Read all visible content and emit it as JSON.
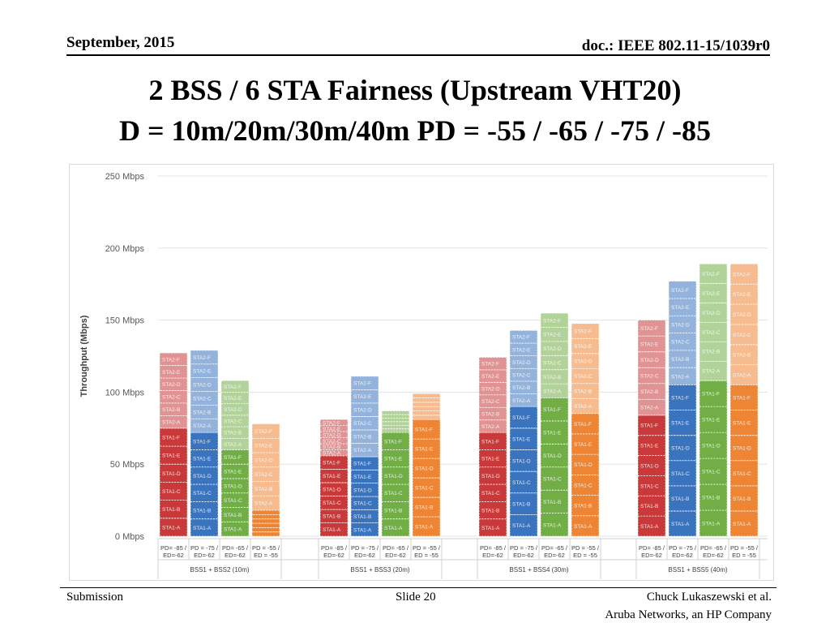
{
  "header": {
    "date": "September, 2015",
    "doc": "doc.: IEEE 802.11-15/1039r0"
  },
  "title": {
    "line1": "2 BSS / 6 STA Fairness (Upstream VHT20)",
    "line2": "D = 10m/20m/30m/40m  PD = -55 / -65 / -75 / -85"
  },
  "footer": {
    "left": "Submission",
    "center": "Slide 20",
    "right1": "Chuck Lukaszewski et al.",
    "right2": "Aruba Networks, an HP Company"
  },
  "chart_data": {
    "type": "bar",
    "stacked": true,
    "ylabel": "Throughput (Mbps)",
    "ylim": [
      0,
      250
    ],
    "yticks": [
      0,
      50,
      100,
      150,
      200,
      250
    ],
    "ytick_labels": [
      "0 Mbps",
      "50 Mbps",
      "100 Mbps",
      "150 Mbps",
      "200 Mbps",
      "250 Mbps"
    ],
    "colors": {
      "red": "#c9393a",
      "blue": "#3a74bf",
      "green": "#71ae46",
      "orange": "#ee8535"
    },
    "stack_order": [
      "STA1-A",
      "STA1-B",
      "STA1-C",
      "STA1-D",
      "STA1-E",
      "STA1-F",
      "STA2-A",
      "STA2-B",
      "STA2-C",
      "STA2-D",
      "STA2-E",
      "STA2-F"
    ],
    "groups": [
      {
        "name": "BSS1 + BSS2 (10m)",
        "bars": [
          {
            "label": "PD= -85 / ED=-62",
            "color": "red",
            "bss1": [
              12.5,
              12.5,
              12.5,
              12.5,
              12.5,
              12.5
            ],
            "bss2": [
              8.7,
              8.7,
              8.7,
              8.7,
              8.7,
              8.7
            ]
          },
          {
            "label": "PD = -75 / ED=-62",
            "color": "blue",
            "bss1": [
              12,
              12,
              12,
              12,
              12,
              12
            ],
            "bss2": [
              9.5,
              9.5,
              9.5,
              9.5,
              9.5,
              9.5
            ]
          },
          {
            "label": "PD= -65 / ED=-62",
            "color": "green",
            "bss1": [
              10,
              10,
              10,
              10,
              10,
              10
            ],
            "bss2": [
              8,
              8,
              8,
              8,
              8,
              8
            ]
          },
          {
            "label": "PD = -55 / ED = -55",
            "color": "orange",
            "bss1": [
              3,
              3,
              3,
              3,
              3,
              3
            ],
            "bss2": [
              10,
              10,
              10,
              10,
              10,
              10
            ]
          }
        ]
      },
      {
        "name": "BSS1 + BSS3 (20m)",
        "bars": [
          {
            "label": "PD= -85 / ED=-62",
            "color": "red",
            "bss1": [
              9.3,
              9.3,
              9.3,
              9.3,
              9.3,
              9.3
            ],
            "bss2": [
              4.2,
              4.2,
              4.2,
              4.2,
              4.2,
              4.2
            ]
          },
          {
            "label": "PD = -75 / ED=-62",
            "color": "blue",
            "bss1": [
              9.2,
              9.2,
              9.2,
              9.2,
              9.2,
              9.2
            ],
            "bss2": [
              9.3,
              9.3,
              9.3,
              9.3,
              9.3,
              9.3
            ]
          },
          {
            "label": "PD= -65 / ED=-62",
            "color": "green",
            "bss1": [
              12,
              12,
              12,
              12,
              12,
              12
            ],
            "bss2": [
              2.5,
              2.5,
              2.5,
              2.5,
              2.5,
              2.5
            ]
          },
          {
            "label": "PD = -55 / ED = -55",
            "color": "orange",
            "bss1": [
              13.5,
              13.5,
              13.5,
              13.5,
              13.5,
              13.5
            ],
            "bss2": [
              3,
              3,
              3,
              3,
              3,
              3
            ]
          }
        ]
      },
      {
        "name": "BSS1 + BSS4 (30m)",
        "bars": [
          {
            "label": "PD= -85 / ED=-62",
            "color": "red",
            "bss1": [
              12,
              12,
              12,
              12,
              12,
              12
            ],
            "bss2": [
              8.7,
              8.7,
              8.7,
              8.7,
              8.7,
              8.7
            ]
          },
          {
            "label": "PD = -75 / ED=-62",
            "color": "blue",
            "bss1": [
              15,
              15,
              15,
              15,
              15,
              15
            ],
            "bss2": [
              8.8,
              8.8,
              8.8,
              8.8,
              8.8,
              8.8
            ]
          },
          {
            "label": "PD= -65 / ED=-62",
            "color": "green",
            "bss1": [
              16,
              16,
              16,
              16,
              16,
              16
            ],
            "bss2": [
              9.8,
              9.8,
              9.8,
              9.8,
              9.8,
              9.8
            ]
          },
          {
            "label": "PD = -55 / ED = -55",
            "color": "orange",
            "bss1": [
              14.2,
              14.2,
              14.2,
              14.2,
              14.2,
              14.2
            ],
            "bss2": [
              10.4,
              10.4,
              10.4,
              10.4,
              10.4,
              10.4
            ]
          }
        ]
      },
      {
        "name": "BSS1 + BSS5 (40m)",
        "bars": [
          {
            "label": "PD= -85 / ED=-62",
            "color": "red",
            "bss1": [
              14,
              14,
              14,
              14,
              14,
              14
            ],
            "bss2": [
              11,
              11,
              11,
              11,
              11,
              11
            ]
          },
          {
            "label": "PD = -75 / ED=-62",
            "color": "blue",
            "bss1": [
              17.5,
              17.5,
              17.5,
              17.5,
              17.5,
              17.5
            ],
            "bss2": [
              12,
              12,
              12,
              12,
              12,
              12
            ]
          },
          {
            "label": "PD= -65 / ED=-62",
            "color": "green",
            "bss1": [
              18,
              18,
              18,
              18,
              18,
              18
            ],
            "bss2": [
              13.5,
              13.5,
              13.5,
              13.5,
              13.5,
              13.5
            ]
          },
          {
            "label": "PD = -55 / ED = -55",
            "color": "orange",
            "bss1": [
              17.5,
              17.5,
              17.5,
              17.5,
              17.5,
              17.5
            ],
            "bss2": [
              14,
              14,
              14,
              14,
              14,
              14
            ]
          }
        ]
      }
    ]
  }
}
